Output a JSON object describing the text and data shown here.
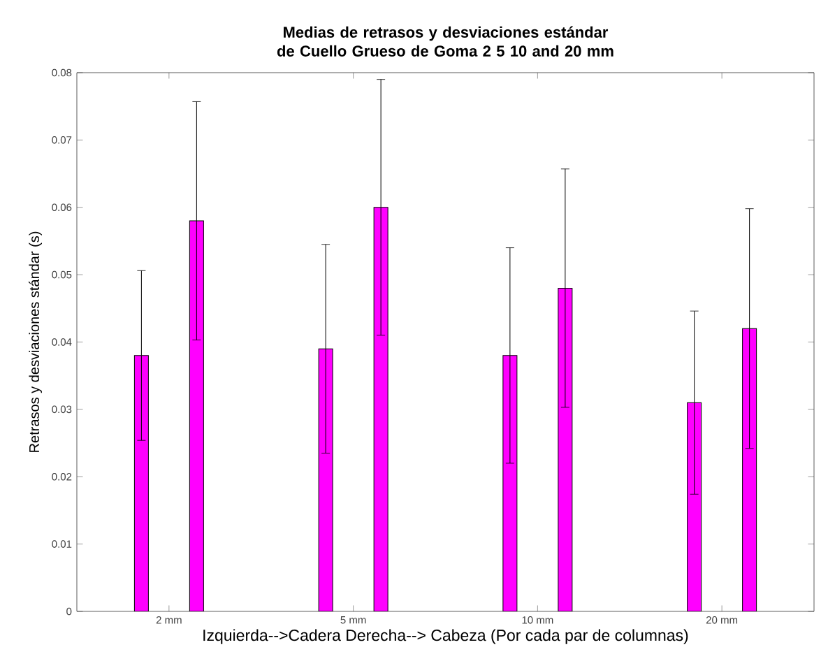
{
  "chart_data": {
    "type": "bar",
    "title": "Medias de retrasos y desviaciones estándar de Cuello Grueso de Goma 2 5 10 and 20 mm",
    "xlabel": "Izquierda-->Cadera    Derecha--> Cabeza  (Por cada par de columnas)",
    "ylabel": "Retrasos y desviaciones stándar (s)",
    "categories": [
      "2 mm",
      "5 mm",
      "10 mm",
      "20 mm"
    ],
    "series": [
      {
        "color": "#ff00ff",
        "values": [
          0.038,
          0.039,
          0.038,
          0.031
        ],
        "errors": [
          0.0126,
          0.0155,
          0.016,
          0.0136
        ]
      },
      {
        "color": "#ff00ff",
        "values": [
          0.058,
          0.06,
          0.048,
          0.042
        ],
        "errors": [
          0.0177,
          0.019,
          0.0177,
          0.0178
        ]
      }
    ],
    "ylim": [
      0,
      0.08
    ],
    "yticks": [
      0,
      0.01,
      0.02,
      0.03,
      0.04,
      0.05,
      0.06,
      0.07,
      0.08
    ],
    "grid": false
  }
}
